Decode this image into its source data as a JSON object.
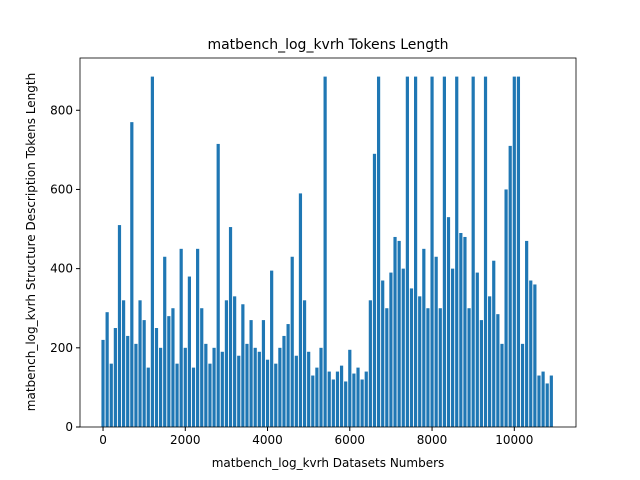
{
  "chart_data": {
    "type": "bar",
    "title": "matbench_log_kvrh Tokens Length",
    "xlabel": "matbench_log_kvrh Datasets Numbers",
    "ylabel": "matbench_log_kvrh Structure Description Tokens Length",
    "color": "#1f77b4",
    "x": [
      0,
      100,
      200,
      300,
      400,
      500,
      600,
      700,
      800,
      900,
      1000,
      1100,
      1200,
      1300,
      1400,
      1500,
      1600,
      1700,
      1800,
      1900,
      2000,
      2100,
      2200,
      2300,
      2400,
      2500,
      2600,
      2700,
      2800,
      2900,
      3000,
      3100,
      3200,
      3300,
      3400,
      3500,
      3600,
      3700,
      3800,
      3900,
      4000,
      4100,
      4200,
      4300,
      4400,
      4500,
      4600,
      4700,
      4800,
      4900,
      5000,
      5100,
      5200,
      5300,
      5400,
      5500,
      5600,
      5700,
      5800,
      5900,
      6000,
      6100,
      6200,
      6300,
      6400,
      6500,
      6600,
      6700,
      6800,
      6900,
      7000,
      7100,
      7200,
      7300,
      7400,
      7500,
      7600,
      7700,
      7800,
      7900,
      8000,
      8100,
      8200,
      8300,
      8400,
      8500,
      8600,
      8700,
      8800,
      8900,
      9000,
      9100,
      9200,
      9300,
      9400,
      9500,
      9600,
      9700,
      9800,
      9900,
      10000,
      10100,
      10200,
      10300,
      10400,
      10500,
      10600,
      10700,
      10800,
      10900
    ],
    "values": [
      220,
      290,
      160,
      250,
      510,
      320,
      230,
      770,
      210,
      320,
      270,
      150,
      885,
      250,
      200,
      430,
      280,
      300,
      160,
      450,
      200,
      380,
      150,
      450,
      300,
      210,
      160,
      200,
      715,
      190,
      320,
      505,
      330,
      180,
      310,
      210,
      270,
      200,
      190,
      270,
      170,
      395,
      160,
      200,
      230,
      260,
      430,
      180,
      590,
      320,
      190,
      130,
      150,
      200,
      885,
      140,
      120,
      140,
      155,
      115,
      195,
      135,
      150,
      120,
      140,
      320,
      690,
      885,
      370,
      300,
      390,
      480,
      470,
      400,
      885,
      350,
      885,
      330,
      450,
      300,
      885,
      430,
      300,
      885,
      530,
      400,
      885,
      490,
      480,
      300,
      885,
      390,
      270,
      885,
      330,
      420,
      285,
      210,
      600,
      710,
      885,
      885,
      210,
      470,
      370,
      360,
      130,
      140,
      110,
      130
    ],
    "xlim": [
      -560,
      11500
    ],
    "ylim": [
      0,
      932
    ],
    "xticks": [
      0,
      2000,
      4000,
      6000,
      8000,
      10000
    ],
    "yticks": [
      0,
      200,
      400,
      600,
      800
    ]
  }
}
